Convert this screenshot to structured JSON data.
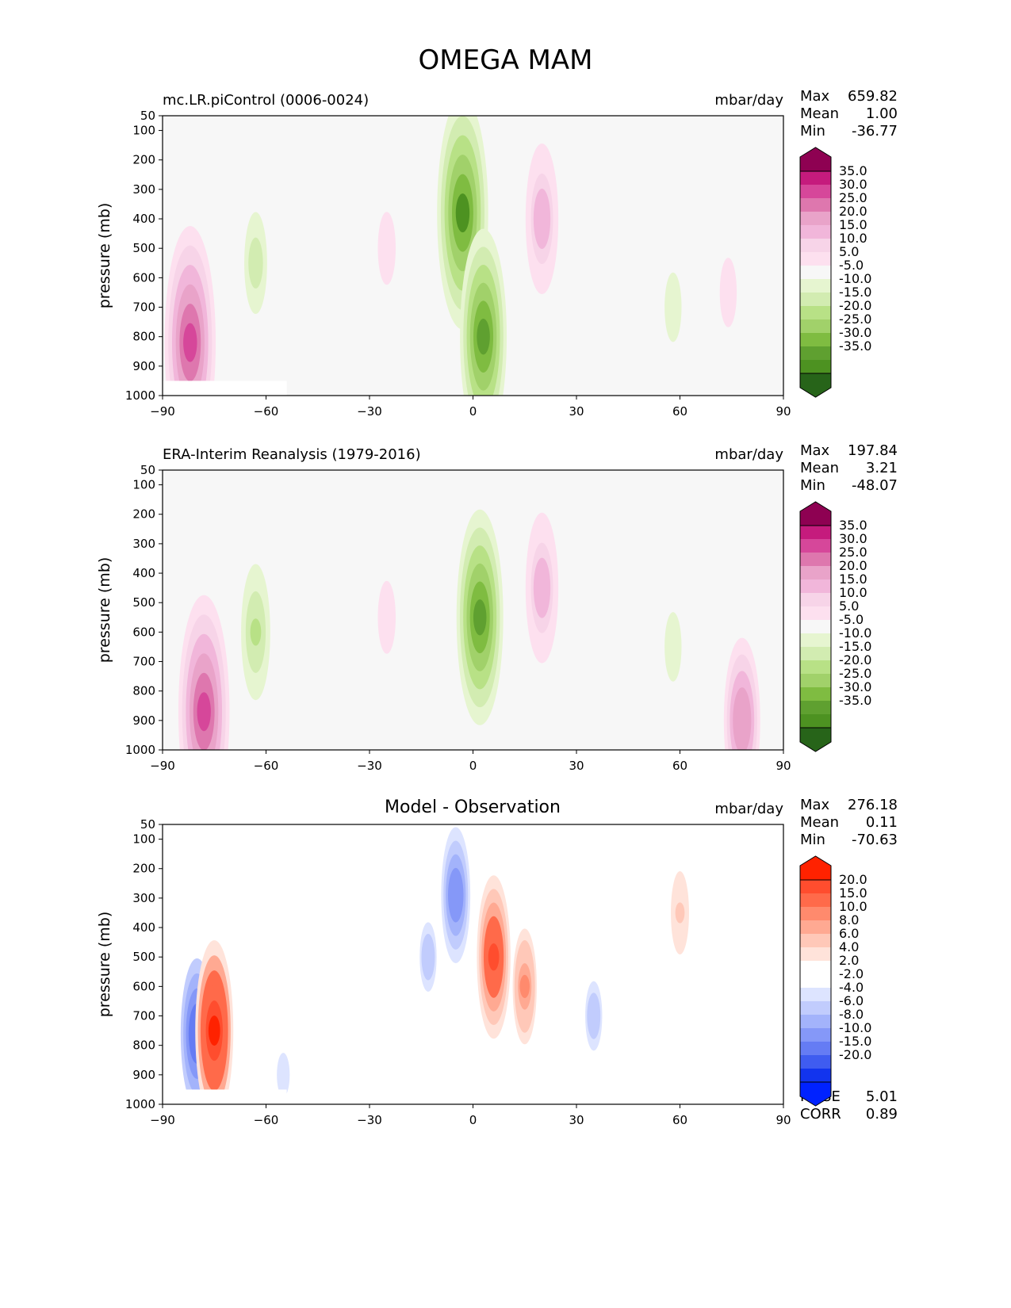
{
  "title": "OMEGA MAM",
  "axis": {
    "ylabel": "pressure (mb)",
    "yticks": [
      "50",
      "100",
      "200",
      "300",
      "400",
      "500",
      "600",
      "700",
      "800",
      "900",
      "1000"
    ],
    "ytick_values": [
      50,
      100,
      200,
      300,
      400,
      500,
      600,
      700,
      800,
      900,
      1000
    ],
    "xticks": [
      "−90",
      "−60",
      "−30",
      "0",
      "30",
      "60",
      "90"
    ],
    "xtick_values": [
      -90,
      -60,
      -30,
      0,
      30,
      60,
      90
    ]
  },
  "panels": [
    {
      "label": "mc.LR.piControl (0006-0024)",
      "units": "mbar/day",
      "stats": [
        {
          "name": "Max",
          "value": "659.82"
        },
        {
          "name": "Mean",
          "value": "1.00"
        },
        {
          "name": "Min",
          "value": "-36.77"
        }
      ]
    },
    {
      "label": "ERA-Interim Reanalysis (1979-2016)",
      "units": "mbar/day",
      "stats": [
        {
          "name": "Max",
          "value": "197.84"
        },
        {
          "name": "Mean",
          "value": "3.21"
        },
        {
          "name": "Min",
          "value": "-48.07"
        }
      ]
    },
    {
      "label": "Model - Observation",
      "units": "mbar/day",
      "stats": [
        {
          "name": "Max",
          "value": "276.18"
        },
        {
          "name": "Mean",
          "value": "0.11"
        },
        {
          "name": "Min",
          "value": "-70.63"
        }
      ],
      "metrics": [
        {
          "name": "RMSE",
          "value": "5.01"
        },
        {
          "name": "CORR",
          "value": "0.89"
        }
      ]
    }
  ],
  "colorbars": {
    "field": {
      "labels": [
        "35.0",
        "30.0",
        "25.0",
        "20.0",
        "15.0",
        "10.0",
        "5.0",
        "-5.0",
        "-10.0",
        "-15.0",
        "-20.0",
        "-25.0",
        "-30.0",
        "-35.0"
      ],
      "colors": [
        "#8e0152",
        "#c51b7d",
        "#d6479a",
        "#de77ae",
        "#e9a3c9",
        "#f1b6da",
        "#f7d4e8",
        "#fde0ef",
        "#f7f7f7",
        "#e6f5d0",
        "#d2ecb1",
        "#b8e186",
        "#a1d16a",
        "#7fbc41",
        "#5fa030",
        "#4d9221",
        "#276419"
      ]
    },
    "diff": {
      "labels": [
        "20.0",
        "15.0",
        "10.0",
        "8.0",
        "6.0",
        "4.0",
        "2.0",
        "-2.0",
        "-4.0",
        "-6.0",
        "-8.0",
        "-10.0",
        "-15.0",
        "-20.0"
      ],
      "colors": [
        "#ff2200",
        "#ff4d2e",
        "#ff6a4a",
        "#ff8a6d",
        "#ffa992",
        "#ffc8b8",
        "#ffe3da",
        "#ffffff",
        "#ffffff",
        "#dde4ff",
        "#c1ccfd",
        "#a3b3fb",
        "#8598f8",
        "#657cf4",
        "#3f5cf0",
        "#1234ee",
        "#0022ff"
      ]
    }
  },
  "chart_data": [
    {
      "type": "heatmap",
      "title": "mc.LR.piControl (0006-0024)",
      "xlabel": "",
      "ylabel": "pressure (mb)",
      "xlim": [
        -90,
        90
      ],
      "ylim": [
        1000,
        50
      ],
      "features": [
        {
          "lat": -3,
          "plev": 380,
          "value": -35
        },
        {
          "lat": 3,
          "plev": 800,
          "value": -30
        },
        {
          "lat": 20,
          "plev": 400,
          "value": 20
        },
        {
          "lat": -25,
          "plev": 500,
          "value": 10
        },
        {
          "lat": -63,
          "plev": 550,
          "value": -12
        },
        {
          "lat": -82,
          "plev": 820,
          "value": 35
        },
        {
          "lat": 58,
          "plev": 700,
          "value": -8
        },
        {
          "lat": 74,
          "plev": 650,
          "value": 8
        }
      ]
    },
    {
      "type": "heatmap",
      "title": "ERA-Interim Reanalysis (1979-2016)",
      "xlabel": "",
      "ylabel": "pressure (mb)",
      "xlim": [
        -90,
        90
      ],
      "ylim": [
        1000,
        50
      ],
      "features": [
        {
          "lat": 2,
          "plev": 550,
          "value": -30
        },
        {
          "lat": 20,
          "plev": 450,
          "value": 20
        },
        {
          "lat": -25,
          "plev": 550,
          "value": 10
        },
        {
          "lat": -63,
          "plev": 600,
          "value": -15
        },
        {
          "lat": -78,
          "plev": 870,
          "value": 35
        },
        {
          "lat": 58,
          "plev": 650,
          "value": -8
        },
        {
          "lat": 78,
          "plev": 900,
          "value": 25
        }
      ]
    },
    {
      "type": "heatmap",
      "title": "Model - Observation",
      "xlabel": "",
      "ylabel": "pressure (mb)",
      "xlim": [
        -90,
        90
      ],
      "ylim": [
        1000,
        50
      ],
      "features": [
        {
          "lat": -5,
          "plev": 290,
          "value": -15
        },
        {
          "lat": -13,
          "plev": 500,
          "value": -8
        },
        {
          "lat": 6,
          "plev": 500,
          "value": 15
        },
        {
          "lat": 15,
          "plev": 600,
          "value": 8
        },
        {
          "lat": 35,
          "plev": 700,
          "value": -8
        },
        {
          "lat": 60,
          "plev": 350,
          "value": 4
        },
        {
          "lat": -80,
          "plev": 760,
          "value": -20
        },
        {
          "lat": -75,
          "plev": 750,
          "value": 20
        },
        {
          "lat": -55,
          "plev": 900,
          "value": -6
        }
      ]
    }
  ]
}
